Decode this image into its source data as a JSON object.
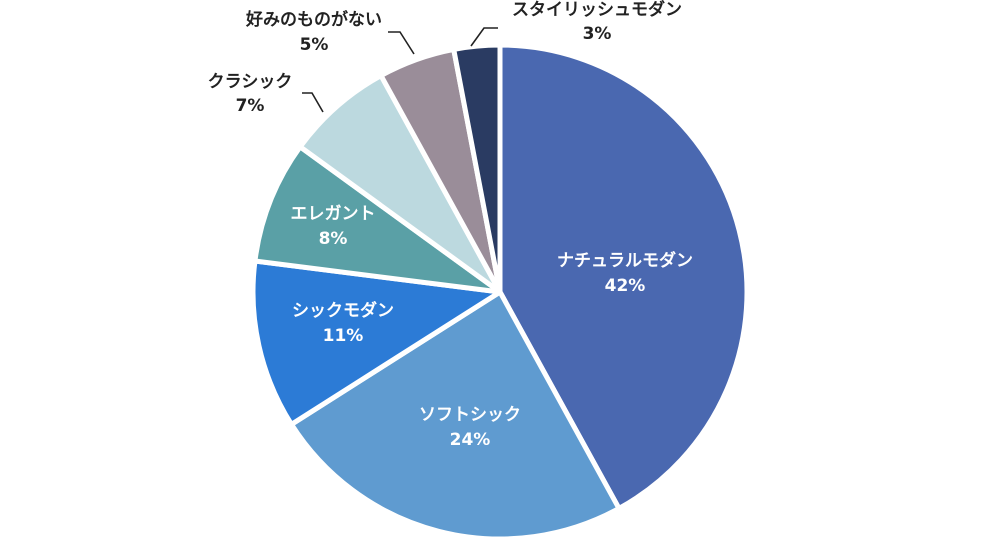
{
  "chart_data": {
    "type": "pie",
    "slices": [
      {
        "name": "ナチュラルモダン",
        "value": 42,
        "label": "42%",
        "color": "#4a68b0"
      },
      {
        "name": "ソフトシック",
        "value": 24,
        "label": "24%",
        "color": "#5f9bd0"
      },
      {
        "name": "シックモダン",
        "value": 11,
        "label": "11%",
        "color": "#2c7bd6"
      },
      {
        "name": "エレガント",
        "value": 8,
        "label": "8%",
        "color": "#5aa0a6"
      },
      {
        "name": "クラシック",
        "value": 7,
        "label": "7%",
        "color": "#bcd9df"
      },
      {
        "name": "好みのものがない",
        "value": 5,
        "label": "5%",
        "color": "#9a8d99"
      },
      {
        "name": "スタイリッシュモダン",
        "value": 3,
        "label": "3%",
        "color": "#2a3b62"
      }
    ]
  }
}
